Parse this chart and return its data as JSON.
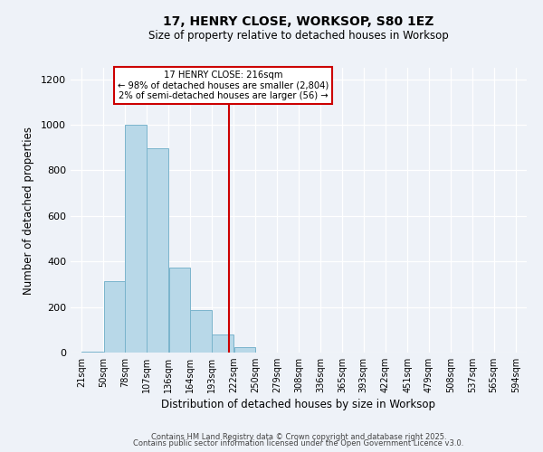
{
  "title": "17, HENRY CLOSE, WORKSOP, S80 1EZ",
  "subtitle": "Size of property relative to detached houses in Worksop",
  "xlabel": "Distribution of detached houses by size in Worksop",
  "ylabel": "Number of detached properties",
  "bar_color": "#b8d8e8",
  "bar_edge_color": "#7ab4cc",
  "background_color": "#eef2f8",
  "bins": [
    21,
    50,
    78,
    107,
    136,
    164,
    193,
    222,
    250,
    279,
    308,
    336,
    365,
    393,
    422,
    451,
    479,
    508,
    537,
    565,
    594
  ],
  "bin_labels": [
    "21sqm",
    "50sqm",
    "78sqm",
    "107sqm",
    "136sqm",
    "164sqm",
    "193sqm",
    "222sqm",
    "250sqm",
    "279sqm",
    "308sqm",
    "336sqm",
    "365sqm",
    "393sqm",
    "422sqm",
    "451sqm",
    "479sqm",
    "508sqm",
    "537sqm",
    "565sqm",
    "594sqm"
  ],
  "counts": [
    5,
    315,
    1000,
    895,
    375,
    185,
    80,
    25,
    0,
    0,
    0,
    0,
    0,
    0,
    0,
    0,
    0,
    0,
    0,
    0
  ],
  "vline_x": 216,
  "vline_color": "#cc0000",
  "annotation_title": "17 HENRY CLOSE: 216sqm",
  "annotation_line1": "← 98% of detached houses are smaller (2,804)",
  "annotation_line2": "2% of semi-detached houses are larger (56) →",
  "annotation_box_color": "#ffffff",
  "annotation_box_edge": "#cc0000",
  "ylim": [
    0,
    1250
  ],
  "yticks": [
    0,
    200,
    400,
    600,
    800,
    1000,
    1200
  ],
  "footer1": "Contains HM Land Registry data © Crown copyright and database right 2025.",
  "footer2": "Contains public sector information licensed under the Open Government Licence v3.0."
}
